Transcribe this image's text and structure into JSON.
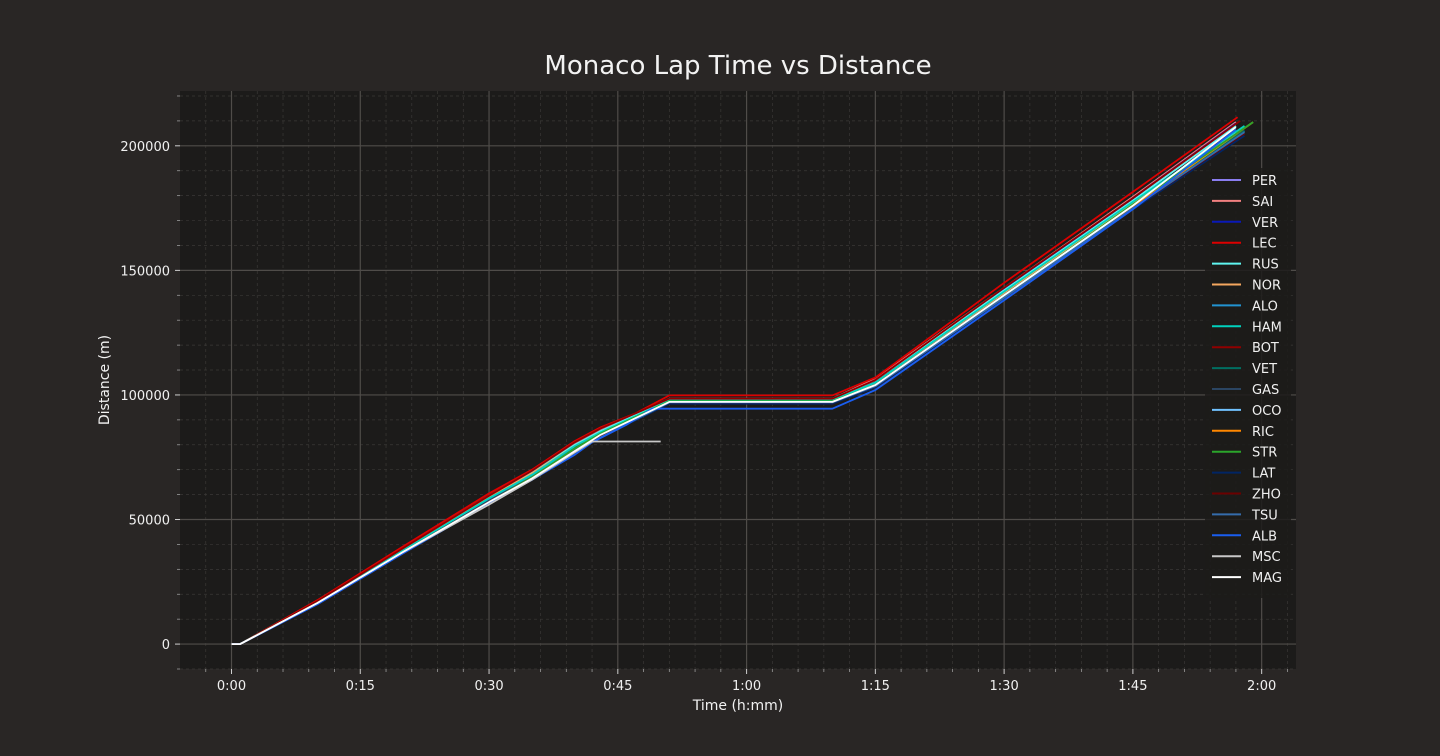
{
  "chart_data": {
    "type": "line",
    "title": "Monaco Lap Time vs Distance",
    "xlabel": "Time (h:mm)",
    "ylabel": "Distance (m)",
    "xlim_minutes": [
      -6.0,
      124.0
    ],
    "ylim": [
      -10000,
      222000
    ],
    "x_ticks": [
      {
        "value": 0,
        "label": "0:00"
      },
      {
        "value": 15,
        "label": "0:15"
      },
      {
        "value": 30,
        "label": "0:30"
      },
      {
        "value": 45,
        "label": "0:45"
      },
      {
        "value": 60,
        "label": "1:00"
      },
      {
        "value": 75,
        "label": "1:15"
      },
      {
        "value": 90,
        "label": "1:30"
      },
      {
        "value": 105,
        "label": "1:45"
      },
      {
        "value": 120,
        "label": "2:00"
      }
    ],
    "y_ticks": [
      {
        "value": 0,
        "label": "0"
      },
      {
        "value": 50000,
        "label": "50000"
      },
      {
        "value": 100000,
        "label": "100000"
      },
      {
        "value": 150000,
        "label": "150000"
      },
      {
        "value": 200000,
        "label": "200000"
      }
    ],
    "grid": true,
    "legend_position": "right",
    "series": [
      {
        "name": "PER",
        "color": "#8a7df0",
        "points": [
          [
            0,
            0
          ],
          [
            1,
            0
          ],
          [
            10,
            17000
          ],
          [
            20,
            38000
          ],
          [
            30,
            59000
          ],
          [
            35,
            69000
          ],
          [
            40,
            80000
          ],
          [
            43,
            85500
          ],
          [
            51,
            98000
          ],
          [
            70,
            98000
          ],
          [
            75,
            106000
          ],
          [
            90,
            142000
          ],
          [
            105,
            178000
          ],
          [
            117,
            208000
          ]
        ]
      },
      {
        "name": "SAI",
        "color": "#f28080",
        "points": [
          [
            0,
            0
          ],
          [
            1,
            0
          ],
          [
            10,
            17500
          ],
          [
            20,
            38500
          ],
          [
            30,
            59500
          ],
          [
            35,
            69500
          ],
          [
            40,
            80500
          ],
          [
            43,
            86000
          ],
          [
            51,
            98500
          ],
          [
            70,
            98500
          ],
          [
            75,
            106500
          ],
          [
            90,
            143000
          ],
          [
            105,
            179500
          ],
          [
            117,
            209500
          ]
        ]
      },
      {
        "name": "VER",
        "color": "#0a19b8",
        "points": [
          [
            0,
            0
          ],
          [
            1,
            0
          ],
          [
            10,
            17000
          ],
          [
            20,
            38000
          ],
          [
            30,
            59000
          ],
          [
            35,
            69000
          ],
          [
            40,
            80000
          ],
          [
            43,
            85500
          ],
          [
            51,
            98000
          ],
          [
            70,
            98000
          ],
          [
            75,
            106000
          ],
          [
            90,
            142500
          ],
          [
            105,
            179000
          ],
          [
            117,
            209000
          ]
        ]
      },
      {
        "name": "LEC",
        "color": "#dc0000",
        "points": [
          [
            0,
            0
          ],
          [
            1,
            0
          ],
          [
            10,
            17600
          ],
          [
            20,
            39200
          ],
          [
            30,
            60500
          ],
          [
            35,
            70000
          ],
          [
            40,
            81500
          ],
          [
            43,
            87000
          ],
          [
            47,
            92500
          ],
          [
            51,
            99800
          ],
          [
            70,
            99800
          ],
          [
            75,
            107000
          ],
          [
            90,
            145000
          ],
          [
            105,
            181500
          ],
          [
            117.2,
            211500
          ]
        ]
      },
      {
        "name": "RUS",
        "color": "#5ff5f0",
        "points": [
          [
            0,
            0
          ],
          [
            1,
            0
          ],
          [
            10,
            17000
          ],
          [
            20,
            38000
          ],
          [
            30,
            59000
          ],
          [
            35,
            69000
          ],
          [
            40,
            80000
          ],
          [
            43,
            85500
          ],
          [
            51,
            98000
          ],
          [
            70,
            98000
          ],
          [
            75,
            106000
          ],
          [
            90,
            142000
          ],
          [
            105,
            178000
          ],
          [
            117,
            208000
          ]
        ]
      },
      {
        "name": "NOR",
        "color": "#f5a75f",
        "points": [
          [
            0,
            0
          ],
          [
            1,
            0
          ],
          [
            10,
            17000
          ],
          [
            20,
            38000
          ],
          [
            30,
            59000
          ],
          [
            35,
            68500
          ],
          [
            40,
            79500
          ],
          [
            43,
            85000
          ],
          [
            51,
            97500
          ],
          [
            70,
            97500
          ],
          [
            75,
            105000
          ],
          [
            90,
            141000
          ],
          [
            105,
            177000
          ],
          [
            118,
            207500
          ]
        ]
      },
      {
        "name": "ALO",
        "color": "#2293d1",
        "points": [
          [
            0,
            0
          ],
          [
            1,
            0
          ],
          [
            10,
            16500
          ],
          [
            20,
            37500
          ],
          [
            30,
            58000
          ],
          [
            35,
            67500
          ],
          [
            40,
            78500
          ],
          [
            43,
            84000
          ],
          [
            51,
            97500
          ],
          [
            70,
            97500
          ],
          [
            75,
            104000
          ],
          [
            90,
            140000
          ],
          [
            105,
            176000
          ],
          [
            118,
            206000
          ]
        ]
      },
      {
        "name": "HAM",
        "color": "#00d2be",
        "points": [
          [
            0,
            0
          ],
          [
            1,
            0
          ],
          [
            10,
            16800
          ],
          [
            20,
            37700
          ],
          [
            30,
            58500
          ],
          [
            35,
            68000
          ],
          [
            40,
            79500
          ],
          [
            43,
            85000
          ],
          [
            51,
            97800
          ],
          [
            70,
            97800
          ],
          [
            75,
            105000
          ],
          [
            90,
            141500
          ],
          [
            105,
            177500
          ],
          [
            118,
            208000
          ]
        ]
      },
      {
        "name": "BOT",
        "color": "#900000",
        "points": [
          [
            0,
            0
          ],
          [
            1,
            0
          ],
          [
            10,
            17200
          ],
          [
            20,
            38500
          ],
          [
            30,
            59500
          ],
          [
            35,
            69500
          ],
          [
            40,
            81000
          ],
          [
            43,
            86500
          ],
          [
            51,
            98500
          ],
          [
            70,
            98500
          ],
          [
            75,
            106000
          ],
          [
            90,
            143000
          ],
          [
            105,
            179000
          ],
          [
            117.5,
            210000
          ]
        ]
      },
      {
        "name": "VET",
        "color": "#006f62",
        "points": [
          [
            0,
            0
          ],
          [
            1,
            0
          ],
          [
            10,
            16500
          ],
          [
            20,
            37000
          ],
          [
            30,
            57500
          ],
          [
            35,
            67000
          ],
          [
            40,
            78000
          ],
          [
            43,
            84000
          ],
          [
            51,
            97000
          ],
          [
            70,
            97000
          ],
          [
            75,
            104000
          ],
          [
            90,
            140000
          ],
          [
            105,
            176000
          ],
          [
            118,
            206000
          ]
        ]
      },
      {
        "name": "GAS",
        "color": "#2b4562",
        "points": [
          [
            0,
            0
          ],
          [
            1,
            0
          ],
          [
            10,
            16500
          ],
          [
            20,
            37000
          ],
          [
            30,
            57500
          ],
          [
            35,
            67000
          ],
          [
            40,
            78000
          ],
          [
            43,
            84000
          ],
          [
            51,
            97000
          ],
          [
            70,
            97000
          ],
          [
            75,
            103500
          ],
          [
            90,
            139500
          ],
          [
            105,
            175000
          ],
          [
            118,
            205000
          ]
        ]
      },
      {
        "name": "OCO",
        "color": "#70c2ff",
        "points": [
          [
            0,
            0
          ],
          [
            1,
            0
          ],
          [
            10,
            16500
          ],
          [
            20,
            37000
          ],
          [
            30,
            57000
          ],
          [
            35,
            66500
          ],
          [
            40,
            77500
          ],
          [
            43,
            83500
          ],
          [
            51,
            97000
          ],
          [
            70,
            97000
          ],
          [
            75,
            103500
          ],
          [
            90,
            139500
          ],
          [
            105,
            175500
          ],
          [
            117,
            205000
          ]
        ]
      },
      {
        "name": "RIC",
        "color": "#ff8700",
        "points": [
          [
            0,
            0
          ],
          [
            1,
            0
          ],
          [
            10,
            16500
          ],
          [
            20,
            37000
          ],
          [
            30,
            57000
          ],
          [
            35,
            66500
          ],
          [
            40,
            77500
          ],
          [
            43,
            83500
          ],
          [
            51,
            97000
          ],
          [
            70,
            97000
          ],
          [
            75,
            103000
          ],
          [
            90,
            138500
          ],
          [
            99,
            160000
          ],
          [
            105,
            175500
          ],
          [
            119,
            209500
          ]
        ]
      },
      {
        "name": "STR",
        "color": "#2ba52b",
        "points": [
          [
            0,
            0
          ],
          [
            1,
            0
          ],
          [
            10,
            16500
          ],
          [
            20,
            37000
          ],
          [
            30,
            57000
          ],
          [
            35,
            67000
          ],
          [
            40,
            78500
          ],
          [
            43,
            84500
          ],
          [
            51,
            97500
          ],
          [
            70,
            97500
          ],
          [
            75,
            104000
          ],
          [
            90,
            140000
          ],
          [
            105,
            176500
          ],
          [
            119,
            209500
          ]
        ]
      },
      {
        "name": "LAT",
        "color": "#012564",
        "points": [
          [
            0,
            0
          ],
          [
            1,
            0
          ],
          [
            10,
            16000
          ],
          [
            20,
            36500
          ],
          [
            30,
            56500
          ],
          [
            35,
            66000
          ],
          [
            40,
            77000
          ],
          [
            43,
            83000
          ],
          [
            51,
            96500
          ],
          [
            70,
            96500
          ],
          [
            75,
            103000
          ],
          [
            90,
            138500
          ],
          [
            105,
            174500
          ],
          [
            118,
            204000
          ]
        ]
      },
      {
        "name": "ZHO",
        "color": "#6b0000",
        "points": [
          [
            0,
            0
          ],
          [
            1,
            0
          ],
          [
            10,
            16200
          ],
          [
            20,
            36800
          ],
          [
            30,
            57000
          ],
          [
            35,
            66500
          ],
          [
            40,
            77500
          ],
          [
            43,
            83500
          ],
          [
            51,
            97000
          ],
          [
            70,
            97000
          ],
          [
            75,
            103500
          ],
          [
            90,
            139000
          ],
          [
            105,
            175000
          ],
          [
            118,
            205000
          ]
        ]
      },
      {
        "name": "TSU",
        "color": "#356cac",
        "points": [
          [
            0,
            0
          ],
          [
            1,
            0
          ],
          [
            10,
            16000
          ],
          [
            20,
            36500
          ],
          [
            30,
            56500
          ],
          [
            35,
            66000
          ],
          [
            40,
            77000
          ],
          [
            43,
            83000
          ],
          [
            51,
            97000
          ],
          [
            70,
            97000
          ],
          [
            75,
            103500
          ],
          [
            90,
            139000
          ],
          [
            105,
            175000
          ],
          [
            118,
            205500
          ]
        ]
      },
      {
        "name": "ALB",
        "color": "#1a5ef0",
        "points": [
          [
            0,
            0
          ],
          [
            1,
            0
          ],
          [
            10,
            16000
          ],
          [
            20,
            36500
          ],
          [
            30,
            56500
          ],
          [
            35,
            66000
          ],
          [
            38,
            72000
          ],
          [
            40,
            76000
          ],
          [
            42,
            81000
          ],
          [
            46,
            88000
          ],
          [
            49,
            94500
          ],
          [
            70,
            94500
          ],
          [
            75,
            102000
          ],
          [
            90,
            138000
          ],
          [
            105,
            174500
          ],
          [
            117,
            206500
          ]
        ]
      },
      {
        "name": "MSC",
        "color": "#c8c8c8",
        "points": [
          [
            0,
            0
          ],
          [
            1,
            0
          ],
          [
            10,
            16500
          ],
          [
            20,
            37000
          ],
          [
            30,
            56000
          ],
          [
            35,
            66000
          ],
          [
            40,
            77000
          ],
          [
            42,
            81300
          ],
          [
            50,
            81300
          ]
        ]
      },
      {
        "name": "MAG",
        "color": "#ffffff",
        "points": [
          [
            0,
            0
          ],
          [
            1,
            0
          ],
          [
            10,
            16500
          ],
          [
            20,
            37000
          ],
          [
            30,
            57000
          ],
          [
            35,
            66500
          ],
          [
            40,
            77500
          ],
          [
            43,
            84000
          ],
          [
            51,
            97200
          ],
          [
            70,
            97200
          ],
          [
            75,
            104000
          ],
          [
            90,
            140000
          ],
          [
            105,
            176000
          ],
          [
            117,
            207500
          ]
        ]
      }
    ]
  }
}
